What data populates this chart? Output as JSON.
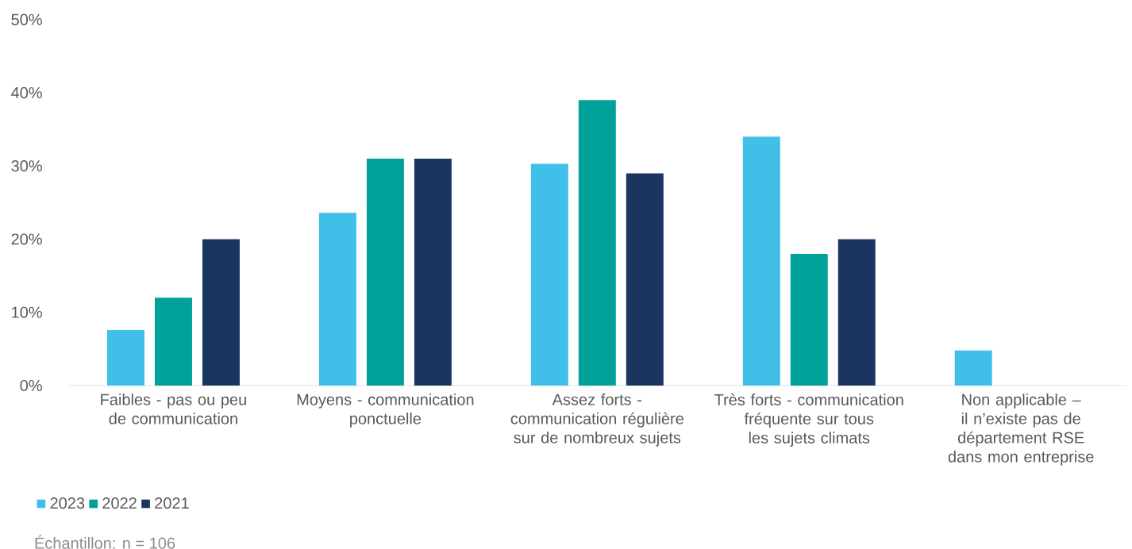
{
  "chart_data": {
    "type": "bar",
    "categories": [
      "Faibles - pas ou peu de communication",
      "Moyens - communication ponctuelle",
      "Assez forts - communication régulière sur de nombreux sujets",
      "Très forts - communication fréquente sur tous les sujets climats",
      "Non applicable – il n’existe pas de département RSE dans mon entreprise"
    ],
    "series": [
      {
        "name": "2023",
        "color": "#40bfe8",
        "values": [
          7.6,
          23.6,
          30.3,
          34,
          4.8
        ]
      },
      {
        "name": "2022",
        "color": "#00a19a",
        "values": [
          12,
          31,
          39,
          18,
          null
        ]
      },
      {
        "name": "2021",
        "color": "#1a3560",
        "values": [
          20,
          31,
          29,
          20,
          null
        ]
      }
    ],
    "ylim": [
      0,
      50
    ],
    "yticks": [
      {
        "value": 0,
        "label": "0%"
      },
      {
        "value": 10,
        "label": "10%"
      },
      {
        "value": 20,
        "label": "20%"
      },
      {
        "value": 30,
        "label": "30%"
      },
      {
        "value": 40,
        "label": "40%"
      },
      {
        "value": 50,
        "label": "50%"
      }
    ],
    "legend": "bottom left",
    "annotations": [
      "Échantillon: n = 106"
    ]
  }
}
